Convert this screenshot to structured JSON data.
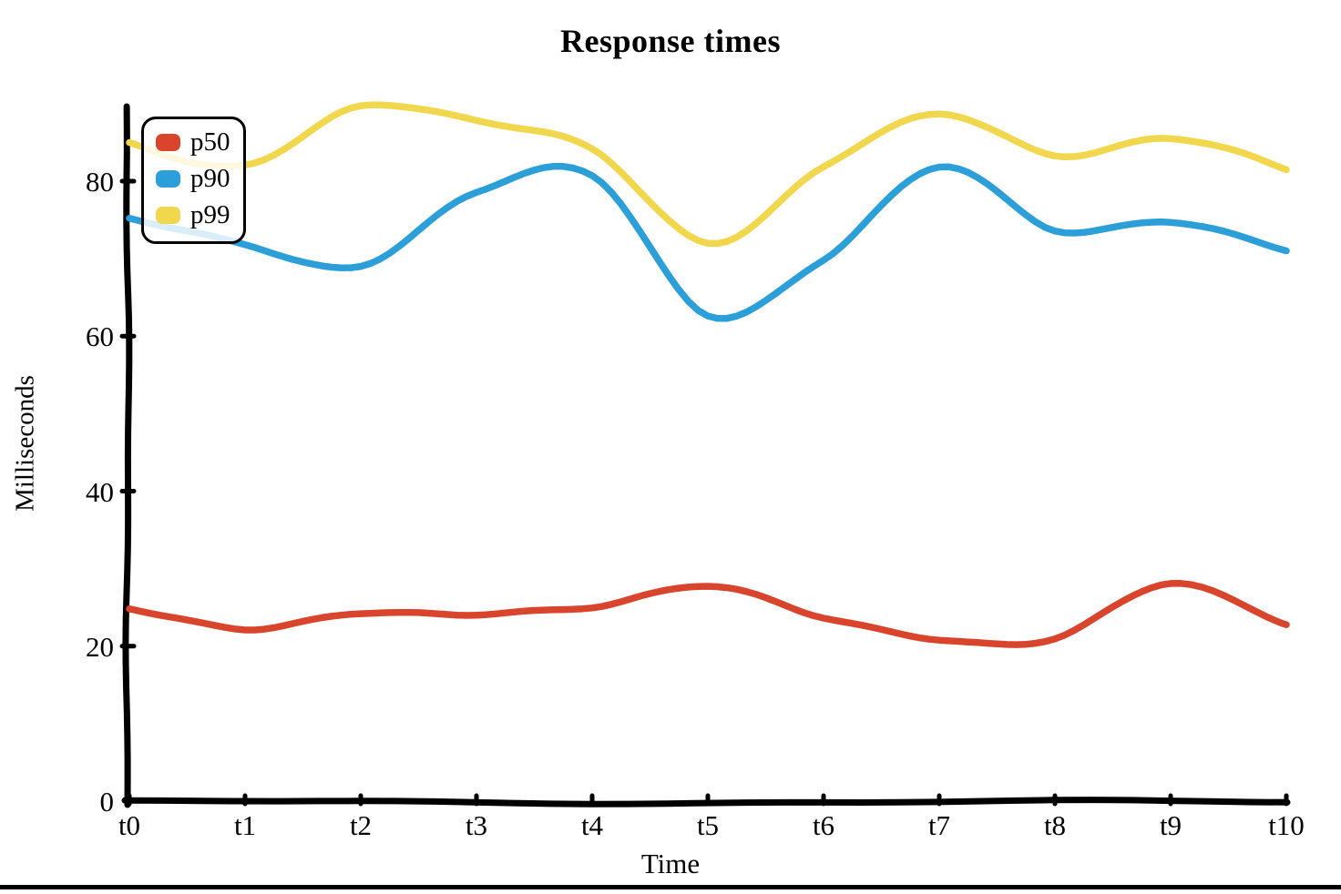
{
  "window": {
    "background": "#ffffff",
    "bottom_edge_color": "#000000"
  },
  "chart_data": {
    "type": "line",
    "title": "Response times",
    "xlabel": "Time",
    "ylabel": "Milliseconds",
    "x_tick_labels": [
      "t0",
      "t1",
      "t2",
      "t3",
      "t4",
      "t5",
      "t6",
      "t7",
      "t8",
      "t9",
      "t10"
    ],
    "y_tick_values": [
      0,
      20,
      40,
      60,
      80
    ],
    "ylim": [
      0,
      90
    ],
    "grid": false,
    "legend_position": "top-left",
    "line_style": "hand-drawn-xkcd",
    "axis_color": "#000000",
    "series": [
      {
        "name": "p50",
        "color": "#d8442c",
        "values": [
          25,
          22,
          24.5,
          24,
          25,
          28,
          23.5,
          21,
          21,
          28,
          23
        ]
      },
      {
        "name": "p90",
        "color": "#2d9fd8",
        "values": [
          75,
          72,
          69,
          78.5,
          81,
          62.5,
          70,
          82,
          73.5,
          75,
          71
        ]
      },
      {
        "name": "p99",
        "color": "#f0d74d",
        "values": [
          85,
          82,
          89.5,
          88,
          84,
          72,
          82,
          88.5,
          83.5,
          85.5,
          81.5
        ]
      }
    ]
  }
}
